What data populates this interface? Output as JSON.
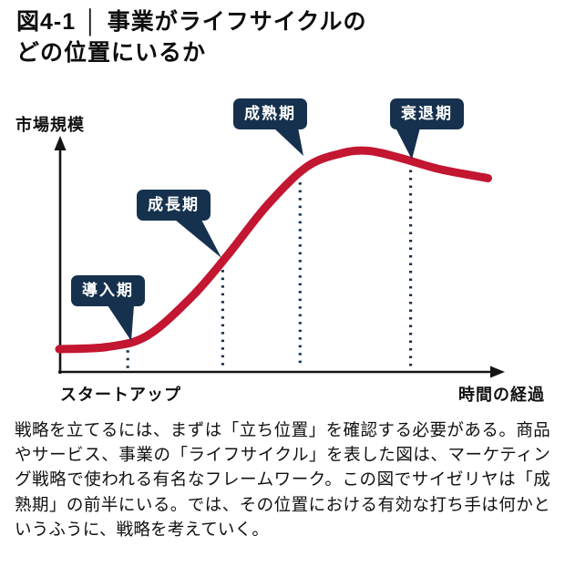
{
  "title": {
    "figure_label": "図4-1",
    "separator": "│",
    "line1": "事業がライフサイクルの",
    "line2": "どの位置にいるか"
  },
  "chart_data": {
    "type": "line",
    "title": "事業がライフサイクルのどの位置にいるか",
    "ylabel": "市場規模",
    "xlabel": "時間の経過",
    "x_start_label": "スタートアップ",
    "phases": [
      {
        "label": "導入期",
        "x": 0.155
      },
      {
        "label": "成長期",
        "x": 0.37
      },
      {
        "label": "成熟期",
        "x": 0.545
      },
      {
        "label": "衰退期",
        "x": 0.795
      }
    ],
    "curve": {
      "x": [
        0,
        0.11,
        0.2,
        0.3,
        0.38,
        0.47,
        0.56,
        0.64,
        0.7,
        0.77,
        0.86,
        0.97
      ],
      "y": [
        0.1,
        0.11,
        0.16,
        0.33,
        0.51,
        0.73,
        0.9,
        0.96,
        0.97,
        0.94,
        0.89,
        0.85
      ]
    },
    "grid": false,
    "legend": "none",
    "colors": {
      "curve": "#c31630",
      "callout": "#16314d",
      "axis": "#151515"
    }
  },
  "caption": "戦略を立てるには、まずは「立ち位置」を確認する必要がある。商品やサービス、事業の「ライフサイクル」を表した図は、マーケティング戦略で使われる有名なフレームワーク。この図でサイゼリヤは「成熟期」の前半にいる。では、その位置における有効な打ち手は何かというふうに、戦略を考えていく。"
}
